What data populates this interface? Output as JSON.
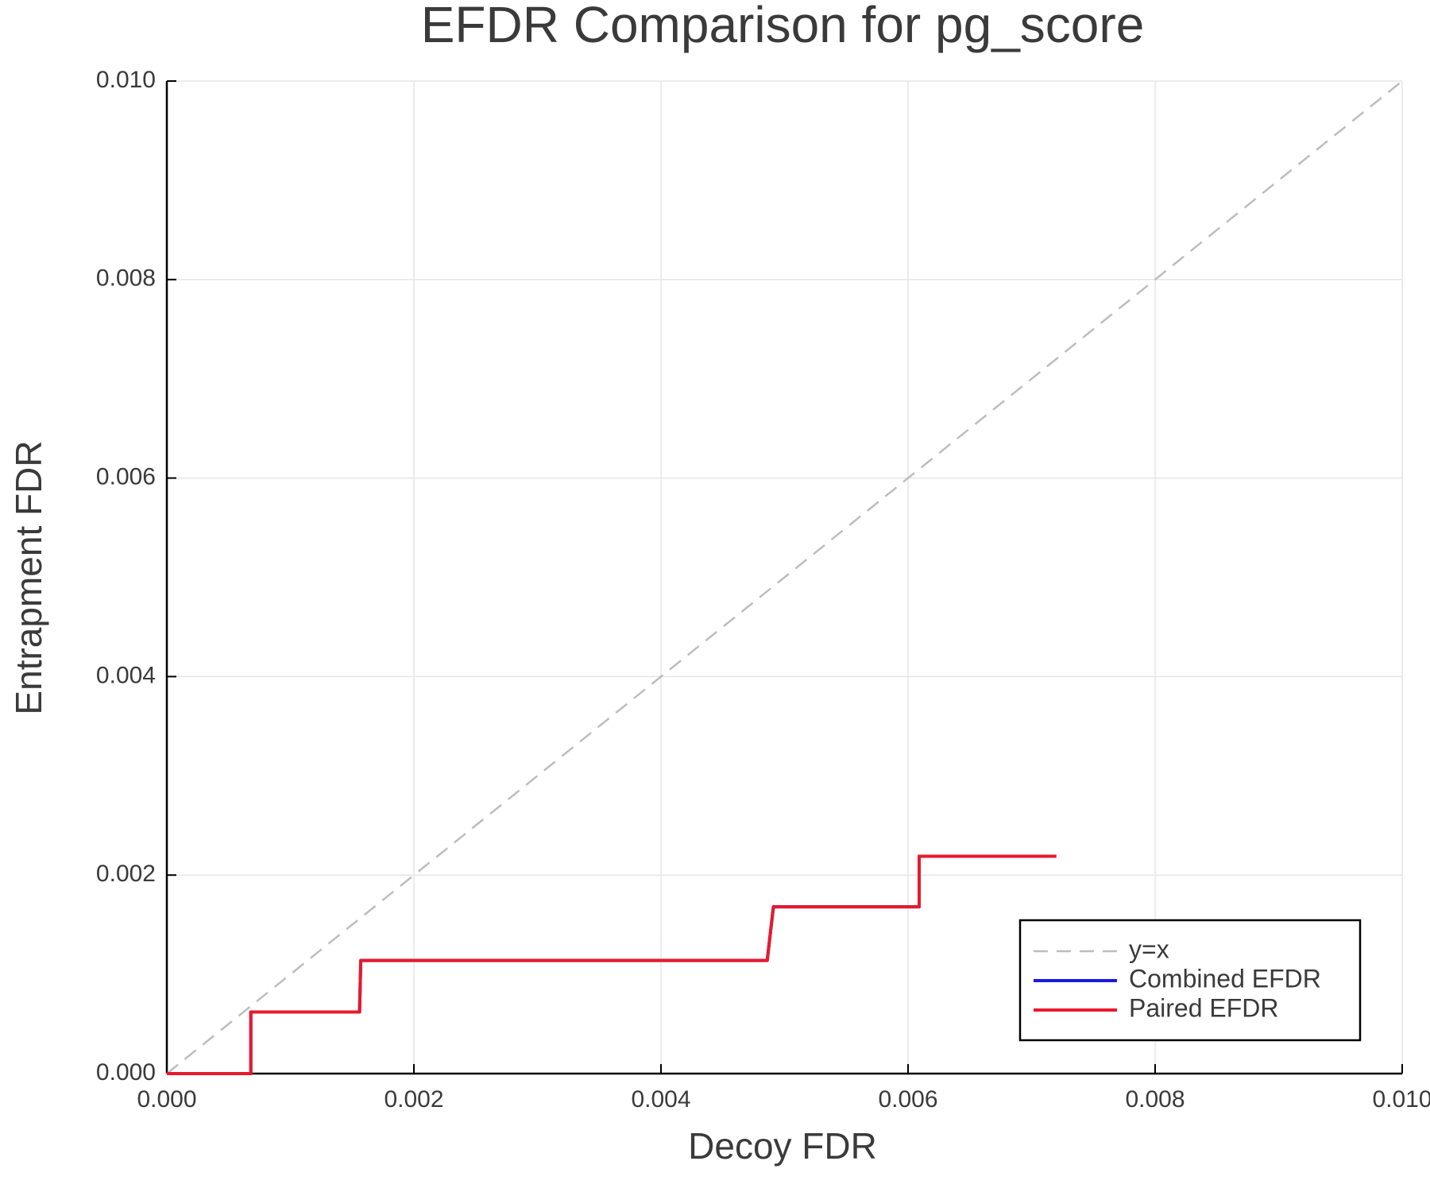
{
  "chart_data": {
    "type": "line",
    "title": "EFDR Comparison for pg_score",
    "x_label": "Decoy FDR",
    "y_label": "Entrapment FDR",
    "xlim": [
      0,
      0.01
    ],
    "ylim": [
      0,
      0.01
    ],
    "xticks": [
      {
        "value": 0,
        "label": "0.000"
      },
      {
        "value": 0.002,
        "label": "0.002"
      },
      {
        "value": 0.004,
        "label": "0.004"
      },
      {
        "value": 0.006,
        "label": "0.006"
      },
      {
        "value": 0.008,
        "label": "0.008"
      },
      {
        "value": 0.01,
        "label": "0.010"
      }
    ],
    "yticks": [
      {
        "value": 0,
        "label": "0.000"
      },
      {
        "value": 0.002,
        "label": "0.002"
      },
      {
        "value": 0.004,
        "label": "0.004"
      },
      {
        "value": 0.006,
        "label": "0.006"
      },
      {
        "value": 0.008,
        "label": "0.008"
      },
      {
        "value": 0.01,
        "label": "0.010"
      }
    ],
    "grid": true,
    "legend": "lower right",
    "series": [
      {
        "name": "y=x",
        "color": "#bdbdbd",
        "dashed": true,
        "x": [
          0,
          0.01
        ],
        "values": [
          0,
          0.01
        ]
      },
      {
        "name": "Combined EFDR",
        "color": "#1a1ae0",
        "dashed": false,
        "x": [
          0,
          0.00068,
          0.00068,
          0.00156,
          0.00157,
          0.00486,
          0.00491,
          0.00609,
          0.00609,
          0.0072
        ],
        "values": [
          0,
          0,
          0.00062,
          0.00062,
          0.00114,
          0.00114,
          0.00168,
          0.00168,
          0.00219,
          0.00219
        ]
      },
      {
        "name": "Paired EFDR",
        "color": "#e8192c",
        "dashed": false,
        "x": [
          0,
          0.00068,
          0.00068,
          0.00156,
          0.00157,
          0.00486,
          0.00491,
          0.00609,
          0.00609,
          0.0072
        ],
        "values": [
          0,
          0,
          0.00062,
          0.00062,
          0.00114,
          0.00114,
          0.00168,
          0.00168,
          0.00219,
          0.00219
        ]
      }
    ]
  }
}
